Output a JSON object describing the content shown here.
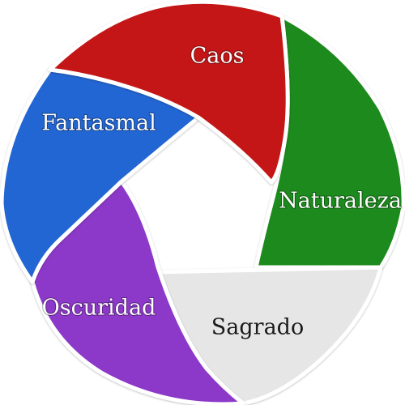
{
  "diagram": {
    "segments": [
      {
        "label": "Caos",
        "color": "#c41818",
        "text_tone": "light"
      },
      {
        "label": "Naturaleza",
        "color": "#1a8a1a",
        "text_tone": "light"
      },
      {
        "label": "Sagrado",
        "color": "#e6e6e6",
        "text_tone": "dark"
      },
      {
        "label": "Oscuridad",
        "color": "#8c38c8",
        "text_tone": "light"
      },
      {
        "label": "Fantasmal",
        "color": "#2266d4",
        "text_tone": "light"
      }
    ]
  }
}
